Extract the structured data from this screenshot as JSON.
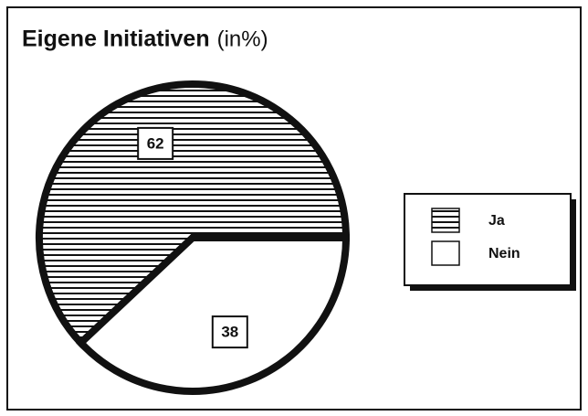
{
  "chart_data": {
    "type": "pie",
    "title": "Eigene Initiativen",
    "subtitle": "(in%)",
    "categories": [
      "Ja",
      "Nein"
    ],
    "values": [
      62,
      38
    ],
    "colors": [
      "#111111",
      "#ffffff"
    ],
    "hatch": [
      "horizontal",
      "none"
    ],
    "legend": "right"
  }
}
